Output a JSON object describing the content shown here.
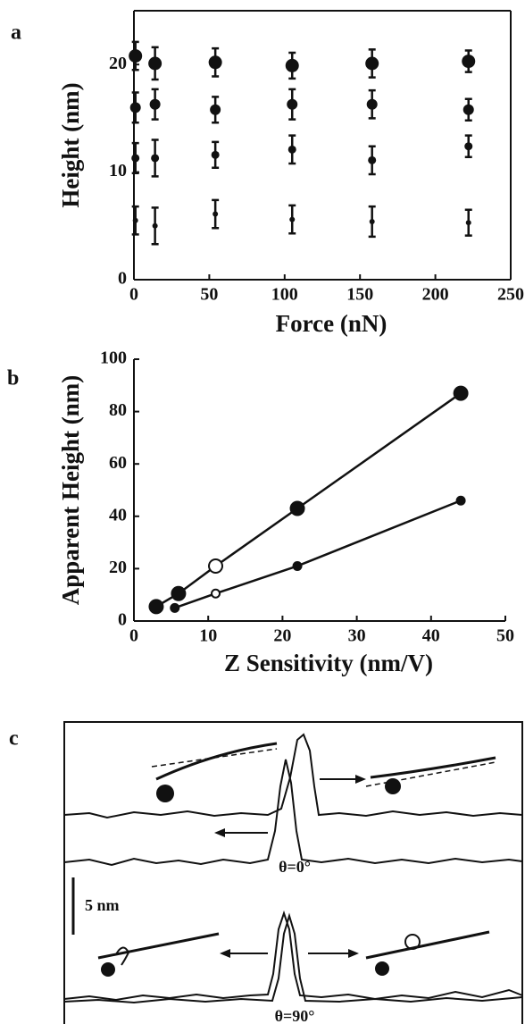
{
  "chart_data": [
    {
      "type": "scatter",
      "label": "a",
      "x_label": "Force (nN)",
      "y_label": "Height (nm)",
      "x": [
        1,
        14,
        54,
        105,
        158,
        222
      ],
      "series": [
        {
          "color": "#111111",
          "marker": "large",
          "values": [
            20.8,
            20.1,
            20.2,
            19.9,
            20.1,
            20.3
          ],
          "errors": [
            1.3,
            1.5,
            1.3,
            1.2,
            1.3,
            1.0
          ]
        },
        {
          "color": "#111111",
          "marker": "medium",
          "values": [
            16.0,
            16.3,
            15.8,
            16.3,
            16.3,
            15.8
          ],
          "errors": [
            1.4,
            1.4,
            1.2,
            1.4,
            1.3,
            1.0
          ]
        },
        {
          "color": "#111111",
          "marker": "small",
          "values": [
            11.3,
            11.3,
            11.6,
            12.1,
            11.1,
            12.4
          ],
          "errors": [
            1.4,
            1.7,
            1.2,
            1.3,
            1.3,
            1.0
          ]
        },
        {
          "color": "#111111",
          "marker": "tiny",
          "values": [
            5.5,
            5.0,
            6.1,
            5.6,
            5.4,
            5.3
          ],
          "errors": [
            1.3,
            1.7,
            1.3,
            1.3,
            1.4,
            1.2
          ]
        }
      ],
      "xlim": [
        0,
        250
      ],
      "xticks": [
        0,
        50,
        100,
        150,
        200,
        250
      ],
      "ylim": [
        0,
        25
      ],
      "yticks": [
        0,
        10,
        20
      ],
      "frame": true
    },
    {
      "type": "line",
      "label": "b",
      "x_label": "Z Sensitivity (nm/V)",
      "y_label": "Apparent Height (nm)",
      "series": [
        {
          "color": "#111111",
          "marker": "large",
          "x": [
            3,
            6,
            11,
            22,
            44
          ],
          "values": [
            5.5,
            10.5,
            21,
            43,
            87
          ],
          "open": [
            false,
            false,
            true,
            false,
            false
          ]
        },
        {
          "color": "#111111",
          "marker": "small",
          "x": [
            5.5,
            11,
            22,
            44
          ],
          "values": [
            5,
            10.5,
            21,
            46
          ],
          "open": [
            false,
            true,
            false,
            false
          ]
        }
      ],
      "xlim": [
        0,
        50
      ],
      "xticks": [
        0,
        10,
        20,
        30,
        40,
        50
      ],
      "ylim": [
        0,
        100
      ],
      "yticks": [
        0,
        20,
        40,
        60,
        80,
        100
      ],
      "frame": false
    }
  ],
  "diagram": {
    "label": "c",
    "scale_bar": "5 nm",
    "angles": [
      "θ=0°",
      "θ=90°"
    ]
  }
}
